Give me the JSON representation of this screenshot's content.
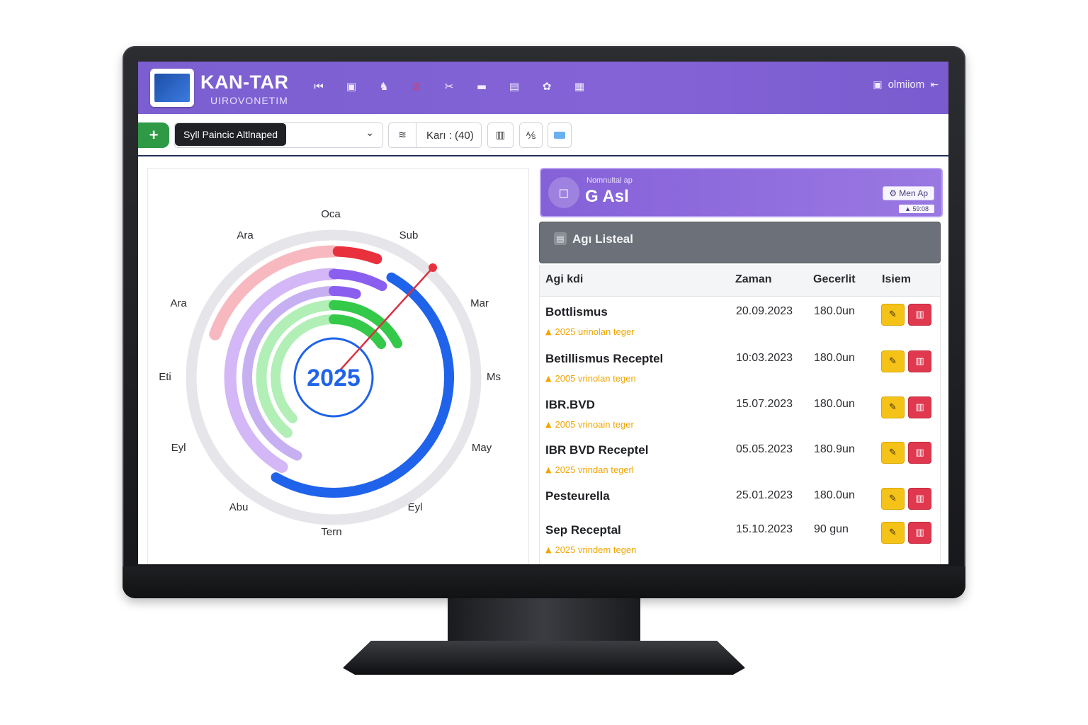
{
  "header": {
    "brand_title": "KAN-TAR",
    "brand_subtitle": "UIROVONETIM",
    "nav_icons": [
      "back-icon",
      "calendar-icon",
      "cow-icon",
      "alert-icon",
      "tools-icon",
      "tag-icon",
      "report-icon",
      "group-icon",
      "notes-icon"
    ],
    "user_label": "olmiiom"
  },
  "toolbar": {
    "add_label": "+",
    "select_value": "Syll Paincic Altlnaped",
    "kart_label": "Karı : (40)"
  },
  "calendar_chart": {
    "center_year": "2025",
    "month_labels": [
      "Oca",
      "Sub",
      "Mar",
      "Ms",
      "May",
      "Eyl",
      "Tern",
      "Abu",
      "Eyl",
      "Eti",
      "Ara",
      "Ara"
    ]
  },
  "info_card": {
    "small_text": "Nomnultal ap",
    "big_text": "G Asl",
    "menu_label": "Men Ap",
    "menu_sub": "▲ 59:08"
  },
  "list": {
    "title": "Agı Listeal",
    "columns": {
      "name": "Agi kdi",
      "date": "Zaman",
      "valid": "Gecerlit",
      "actions": "Isiem"
    },
    "rows": [
      {
        "name": "Bottlismus",
        "date": "20.09.2023",
        "duration": "180.0un",
        "warning": "2025 urinolan teger"
      },
      {
        "name": "Betillismus Receptel",
        "date": "10:03.2023",
        "duration": "180.0un",
        "warning": "2005 vrinolan tegen"
      },
      {
        "name": "IBR.BVD",
        "date": "15.07.2023",
        "duration": "180.0un",
        "warning": "2005 vrinoain teger"
      },
      {
        "name": "IBR BVD Receptel",
        "date": "05.05.2023",
        "duration": "180.9un",
        "warning": "2025 vrindan tegerl"
      },
      {
        "name": "Pesteurella",
        "date": "25.01.2023",
        "duration": "180.0un",
        "warning": ""
      },
      {
        "name": "Sep Receptal",
        "date": "15.10.2023",
        "duration": "90 gun",
        "warning": "2025 vrindem tegen"
      }
    ]
  },
  "colors": {
    "header_purple": "#7b5fd0",
    "ring_red": "#e8313c",
    "ring_blue": "#1f63ea",
    "ring_purple": "#8a5ff0",
    "ring_green": "#35c94a",
    "edit_yellow": "#f5c218",
    "delete_red": "#e0384f"
  }
}
